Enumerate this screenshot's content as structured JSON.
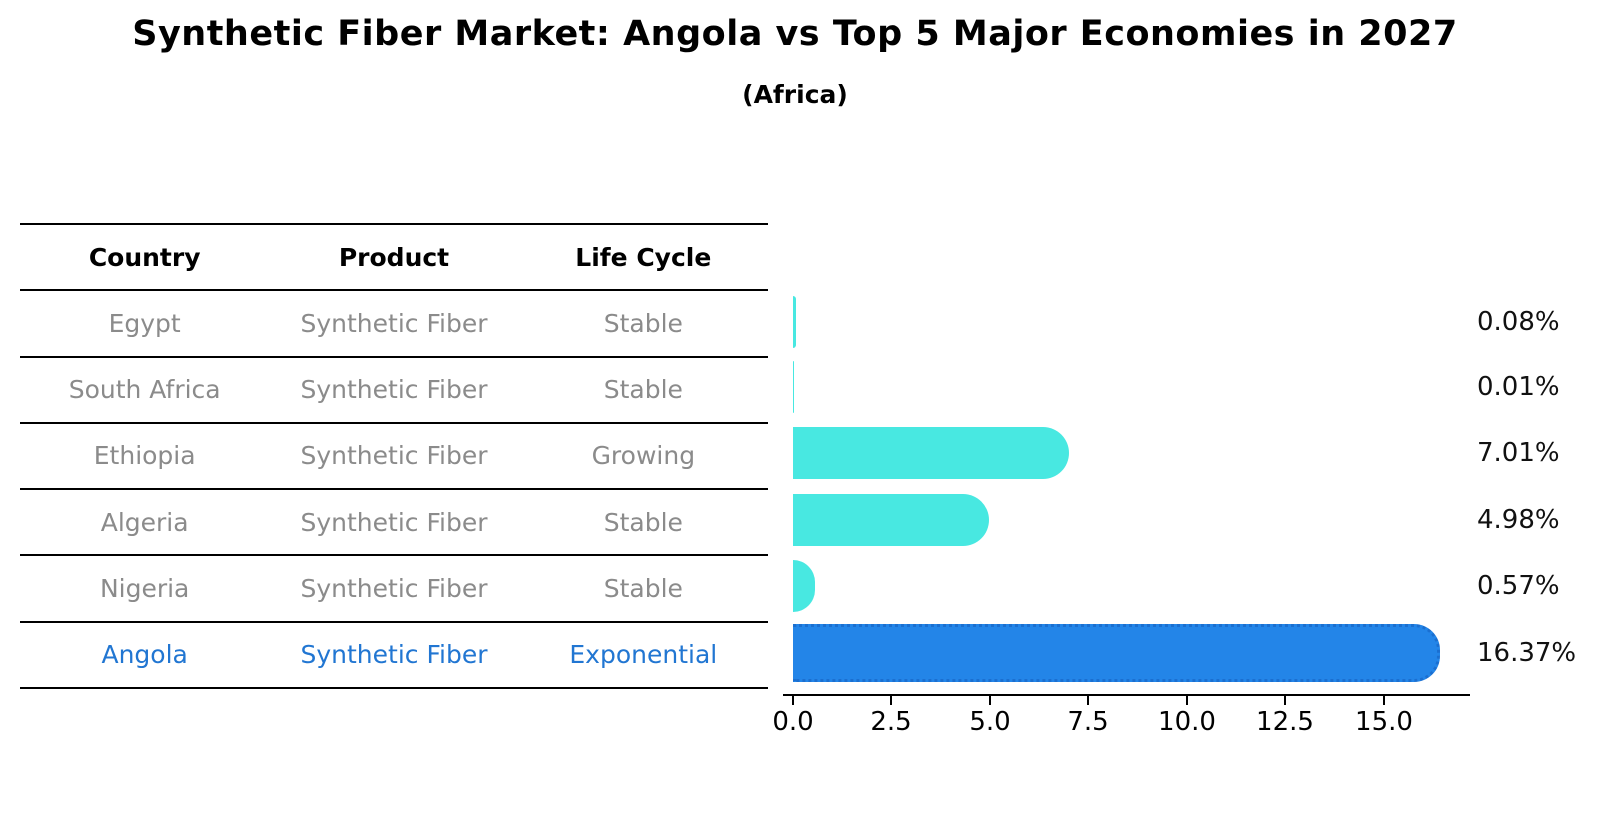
{
  "title": "Synthetic Fiber Market: Angola vs Top 5 Major Economies in 2027",
  "subtitle": "(Africa)",
  "table": {
    "headers": {
      "country": "Country",
      "product": "Product",
      "life_cycle": "Life Cycle"
    },
    "rows": [
      {
        "country": "Egypt",
        "product": "Synthetic Fiber",
        "life_cycle": "Stable",
        "value_label": "0.08%"
      },
      {
        "country": "South Africa",
        "product": "Synthetic Fiber",
        "life_cycle": "Stable",
        "value_label": "0.01%"
      },
      {
        "country": "Ethiopia",
        "product": "Synthetic Fiber",
        "life_cycle": "Growing",
        "value_label": "7.01%"
      },
      {
        "country": "Algeria",
        "product": "Synthetic Fiber",
        "life_cycle": "Stable",
        "value_label": "4.98%"
      },
      {
        "country": "Nigeria",
        "product": "Synthetic Fiber",
        "life_cycle": "Stable",
        "value_label": "0.57%"
      },
      {
        "country": "Angola",
        "product": "Synthetic Fiber",
        "life_cycle": "Exponential",
        "value_label": "16.37%",
        "highlighted": true
      }
    ]
  },
  "axis": {
    "ticks": [
      "0.0",
      "2.5",
      "5.0",
      "7.5",
      "10.0",
      "12.5",
      "15.0"
    ]
  },
  "colors": {
    "bar_default": "#48e8e1",
    "bar_highlight": "#2385e8",
    "bar_highlight_edge": "#1b6fd0",
    "highlight_text": "#2176d2",
    "table_text": "#8b8b8b",
    "title_text": "#000000"
  },
  "chart_data": {
    "type": "bar",
    "orientation": "horizontal",
    "title": "Synthetic Fiber Market: Angola vs Top 5 Major Economies in 2027",
    "subtitle": "(Africa)",
    "categories": [
      "Egypt",
      "South Africa",
      "Ethiopia",
      "Algeria",
      "Nigeria",
      "Angola"
    ],
    "values": [
      0.08,
      0.01,
      7.01,
      4.98,
      0.57,
      16.37
    ],
    "value_labels": [
      "0.08%",
      "0.01%",
      "7.01%",
      "4.98%",
      "0.57%",
      "16.37%"
    ],
    "value_unit": "%",
    "series_meta": {
      "product": "Synthetic Fiber",
      "life_cycles": [
        "Stable",
        "Stable",
        "Growing",
        "Stable",
        "Stable",
        "Exponential"
      ]
    },
    "highlight_category": "Angola",
    "xlabel": "",
    "ylabel": "",
    "xticks": [
      0.0,
      2.5,
      5.0,
      7.5,
      10.0,
      12.5,
      15.0
    ],
    "xlim": [
      0,
      17.2
    ],
    "grid": false,
    "legend": false
  }
}
